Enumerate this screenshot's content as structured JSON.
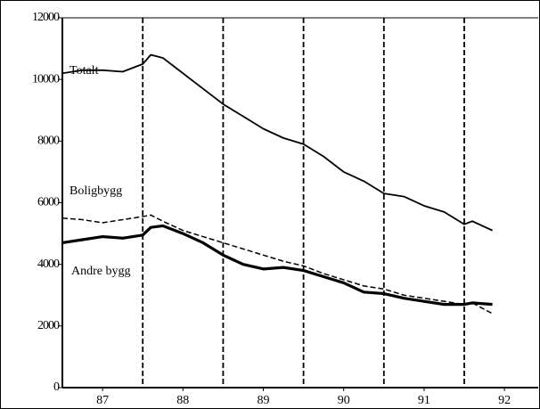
{
  "chart_data": {
    "type": "line",
    "x": [
      87,
      87.25,
      87.5,
      87.75,
      88,
      88.1,
      88.25,
      88.5,
      88.75,
      89,
      89.25,
      89.5,
      89.75,
      90,
      90.25,
      90.5,
      90.75,
      91,
      91.25,
      91.5,
      91.75,
      92,
      92.1,
      92.35
    ],
    "series": [
      {
        "name": "Totalt",
        "color": "#000000",
        "style": "solid",
        "width": 1.8,
        "values": [
          10200,
          10300,
          10300,
          10250,
          10500,
          10800,
          10700,
          10200,
          9700,
          9200,
          8800,
          8400,
          8100,
          7900,
          7500,
          7000,
          6700,
          6300,
          6200,
          5900,
          5700,
          5300,
          5400,
          5100
        ]
      },
      {
        "name": "Boligbygg",
        "color": "#000000",
        "style": "dashed",
        "width": 1.5,
        "values": [
          5500,
          5450,
          5350,
          5450,
          5550,
          5600,
          5400,
          5100,
          4900,
          4700,
          4500,
          4300,
          4100,
          3950,
          3700,
          3500,
          3300,
          3200,
          3000,
          2900,
          2800,
          2700,
          2750,
          2400
        ]
      },
      {
        "name": "Andre bygg",
        "color": "#000000",
        "style": "solid",
        "width": 3.2,
        "values": [
          4700,
          4800,
          4900,
          4850,
          4950,
          5200,
          5250,
          5000,
          4700,
          4300,
          4000,
          3850,
          3900,
          3800,
          3600,
          3400,
          3100,
          3050,
          2900,
          2800,
          2700,
          2700,
          2750,
          2700
        ]
      }
    ],
    "xlim": [
      87,
      92.92
    ],
    "ylim": [
      0,
      12000
    ],
    "yticks": [
      0,
      2000,
      4000,
      6000,
      8000,
      10000,
      12000
    ],
    "xticks": [
      {
        "value": 87.5,
        "label": "87"
      },
      {
        "value": 88.5,
        "label": "88"
      },
      {
        "value": 89.5,
        "label": "89"
      },
      {
        "value": 90.5,
        "label": "90"
      },
      {
        "value": 91.5,
        "label": "91"
      },
      {
        "value": 92.5,
        "label": "92"
      }
    ],
    "xgrid": [
      88,
      89,
      90,
      91,
      92
    ]
  }
}
